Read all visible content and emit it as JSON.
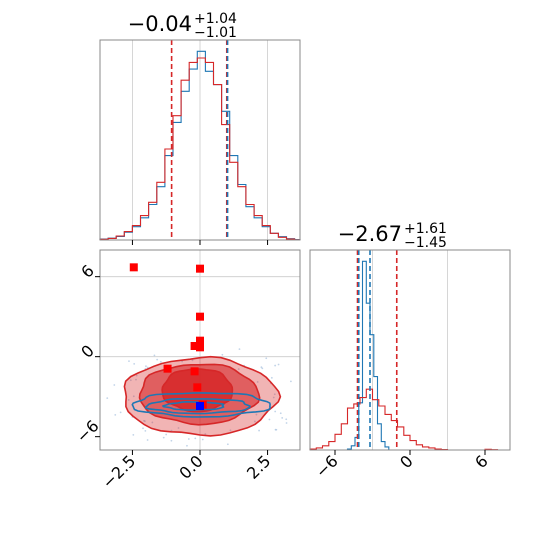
{
  "figure": {
    "colors": {
      "blue": "#1f77b4",
      "red": "#d62728",
      "grid": "#cccccc",
      "axis": "#888888",
      "marker_red": "#ff0000",
      "marker_blue": "#0000ff"
    }
  },
  "chart_data": [
    {
      "type": "histogram",
      "panel": "top-left",
      "title": {
        "base": "−0.04",
        "plus": "+1.04",
        "minus": "−1.01"
      },
      "xlim": [
        -3.7,
        3.7
      ],
      "grid": true,
      "series": [
        {
          "color": "#1f77b4",
          "bin_edges": [
            -3.7,
            -3.4,
            -3.1,
            -2.8,
            -2.5,
            -2.2,
            -1.9,
            -1.6,
            -1.3,
            -1.0,
            -0.7,
            -0.4,
            -0.1,
            0.2,
            0.5,
            0.8,
            1.1,
            1.4,
            1.7,
            2.0,
            2.3,
            2.6,
            2.9,
            3.2,
            3.5,
            3.7
          ],
          "values": [
            0.4,
            0.8,
            1.6,
            3.5,
            6,
            10,
            16,
            24,
            38,
            53,
            67,
            77,
            85,
            76,
            70,
            58,
            38,
            25,
            15,
            10,
            6,
            3,
            1.5,
            0.6,
            0.2
          ]
        },
        {
          "color": "#d62728",
          "bin_edges": [
            -3.7,
            -3.4,
            -3.1,
            -2.8,
            -2.5,
            -2.2,
            -1.9,
            -1.6,
            -1.3,
            -1.0,
            -0.7,
            -0.4,
            -0.1,
            0.2,
            0.5,
            0.8,
            1.1,
            1.4,
            1.7,
            2.0,
            2.3,
            2.6,
            2.9,
            3.2,
            3.5,
            3.7
          ],
          "values": [
            0.3,
            0.7,
            1.8,
            3.8,
            6.5,
            11,
            17,
            26,
            41,
            56,
            72,
            80,
            82,
            80,
            70,
            52,
            35,
            24,
            16,
            11,
            6.5,
            3,
            1.2,
            0.4,
            0.1
          ]
        }
      ],
      "vlines": [
        {
          "x": -1.05,
          "color": "#d62728"
        },
        {
          "x": 0.99,
          "color": "#d62728"
        },
        {
          "x": 1.02,
          "color": "#1f77b4"
        }
      ]
    },
    {
      "type": "contour",
      "panel": "bottom-left",
      "xlim": [
        -3.7,
        3.7
      ],
      "ylim": [
        -7.0,
        8.0
      ],
      "xticks": [
        -2.5,
        0.0,
        2.5
      ],
      "xtick_labels": [
        "−2.5",
        "0.0",
        "2.5"
      ],
      "yticks": [
        -6,
        0,
        6
      ],
      "ytick_labels": [
        "−6",
        "0",
        "6"
      ],
      "grid": true,
      "gridlines": {
        "x": 0.0,
        "y": [
          0,
          6
        ]
      },
      "red_contours": [
        {
          "center": [
            0.0,
            -3.0
          ],
          "rx": 2.85,
          "ry": 2.9,
          "fill": 0.35
        },
        {
          "center": [
            -0.05,
            -2.8
          ],
          "rx": 2.2,
          "ry": 2.25,
          "fill": 0.6
        },
        {
          "center": [
            -0.1,
            -2.5
          ],
          "rx": 1.3,
          "ry": 1.6,
          "fill": 0.85
        }
      ],
      "blue_contours": [
        {
          "center": [
            0.05,
            -3.6
          ],
          "rx": 2.55,
          "ry": 0.9
        },
        {
          "center": [
            -0.05,
            -3.7
          ],
          "rx": 1.9,
          "ry": 0.55
        },
        {
          "center": [
            -0.2,
            -3.7
          ],
          "rx": 1.1,
          "ry": 0.3
        }
      ],
      "red_markers": [
        [
          -2.45,
          6.7
        ],
        [
          0.0,
          6.6
        ],
        [
          0.0,
          3.0
        ],
        [
          0.0,
          1.2
        ],
        [
          0.0,
          0.7
        ],
        [
          -0.2,
          0.8
        ],
        [
          -1.2,
          -0.9
        ],
        [
          -0.2,
          -1.1
        ],
        [
          -0.1,
          -2.3
        ],
        [
          0.1,
          -3.6
        ]
      ],
      "blue_markers": [
        [
          0.0,
          -3.7
        ]
      ]
    },
    {
      "type": "histogram",
      "panel": "bottom-right",
      "title": {
        "base": "−2.67",
        "plus": "+1.61",
        "minus": "−1.45"
      },
      "xlim": [
        -8.0,
        8.0
      ],
      "xticks": [
        -6,
        0,
        6
      ],
      "xtick_labels": [
        "−6",
        "0",
        "6"
      ],
      "grid": true,
      "series": [
        {
          "color": "#1f77b4",
          "bin_edges": [
            -5.0,
            -4.7,
            -4.4,
            -4.1,
            -3.8,
            -3.5,
            -3.2,
            -2.9,
            -2.6,
            -2.3,
            -2.0,
            -1.7
          ],
          "values": [
            1,
            4,
            12,
            45,
            180,
            140,
            110,
            70,
            25,
            8,
            3
          ]
        },
        {
          "color": "#d62728",
          "bin_edges": [
            -8.0,
            -7.5,
            -7.0,
            -6.5,
            -6.0,
            -5.5,
            -5.0,
            -4.5,
            -4.0,
            -3.5,
            -3.0,
            -2.5,
            -2.0,
            -1.5,
            -1.0,
            -0.5,
            0.0,
            0.5,
            1.0,
            1.5,
            2.0,
            2.5,
            3.0,
            6.0,
            6.5,
            7.0
          ],
          "values": [
            1,
            2,
            4,
            8,
            15,
            25,
            40,
            44,
            50,
            58,
            48,
            42,
            34,
            28,
            22,
            14,
            9,
            5,
            3,
            2,
            1,
            0.5,
            0,
            0.7,
            0.3
          ]
        }
      ],
      "vlines": [
        {
          "x": -4.2,
          "color": "#d62728"
        },
        {
          "x": -1.06,
          "color": "#d62728"
        },
        {
          "x": -4.1,
          "color": "#1f77b4"
        },
        {
          "x": -3.2,
          "color": "#1f77b4"
        }
      ]
    }
  ]
}
